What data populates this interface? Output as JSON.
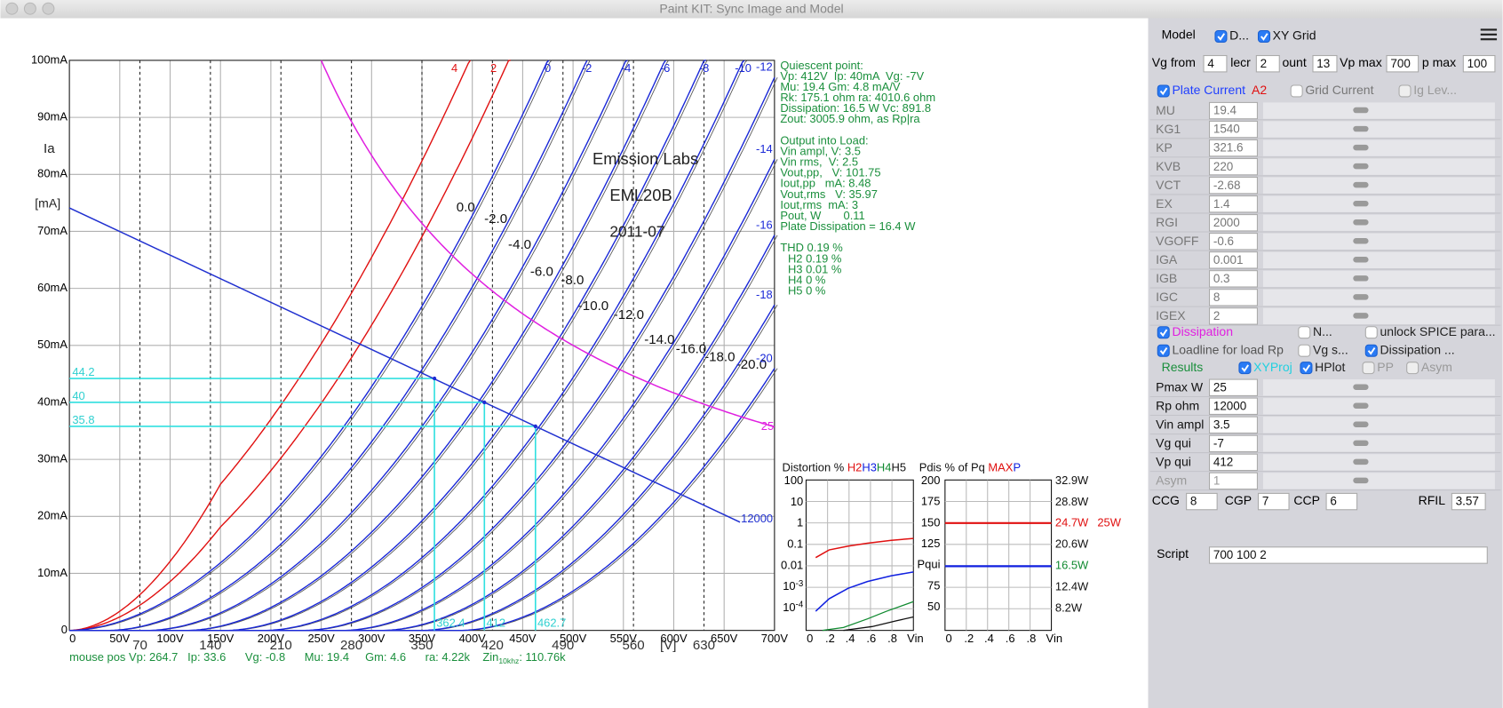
{
  "window": {
    "title": "Paint KIT: Sync Image and Model"
  },
  "plot": {
    "y_labels": [
      "100mA",
      "90mA",
      "80mA",
      "70mA",
      "60mA",
      "50mA",
      "40mA",
      "30mA",
      "20mA",
      "10mA",
      "0"
    ],
    "x_labels": [
      "0",
      "50V",
      "100V",
      "150V",
      "200V",
      "250V",
      "300V",
      "350V",
      "400V",
      "450V",
      "500V",
      "550V",
      "600V",
      "650V",
      "700V"
    ],
    "image_x_labels": [
      70,
      140,
      210,
      280,
      350,
      420,
      490,
      560,
      630
    ],
    "image_unit_label": "[V]",
    "image_axis_labels": [
      "Ia",
      "[mA]"
    ],
    "image_title": [
      "Emission Labs",
      "EML20B",
      "2011-07"
    ],
    "image_curve_labels": [
      "0.0",
      "-2.0",
      "-4.0",
      "-6.0",
      "-8.0",
      "-10.0",
      "-12.0",
      "-14.0",
      "-16.0",
      "-18.0",
      "-20.0"
    ],
    "grid_top_labels": [
      4,
      2,
      0,
      -2,
      -4,
      -6,
      -8,
      -10
    ],
    "grid_right_labels": [
      -12,
      -14,
      -16,
      -18,
      -20
    ],
    "dissipation_w": 25,
    "load_label": "12000",
    "projections": [
      {
        "ia": 44.2,
        "vp": 362.4
      },
      {
        "ia": 40,
        "vp": 412
      },
      {
        "ia": 35.8,
        "vp": 462.7
      }
    ]
  },
  "info": {
    "quiescent": [
      "Quiescent point:",
      "Vp: 412V  Ip: 40mA  Vg: -7V",
      "Mu: 19.4 Gm: 4.8 mA/V",
      "Rk: 175.1 ohm ra: 4010.6 ohm",
      "Dissipation: 16.5 W Vc: 891.8",
      "Zout: 3005.9 ohm, as Rp|ra"
    ],
    "output": [
      "Output into Load:",
      "Vin ampl, V: 3.5",
      "Vin rms,  V: 2.5",
      "Vout,pp,   V: 101.75",
      "Iout,pp   mA: 8.48",
      "Vout,rms   V: 35.97",
      "Iout,rms  mA: 3",
      "Pout, W       0.11",
      "Plate Dissipation = 16.4 W"
    ],
    "thd": [
      "THD 0.19 %",
      "H2 0.19 %",
      "H3 0.01 %",
      "H4 0 %",
      "H5 0 %"
    ]
  },
  "mouse": {
    "text": "mouse pos Vp: 264.7   Ip: 33.6      Vg: -0.8      Mu: 19.4     Gm: 4.6      ra: 4.22k    Zin",
    "sub": "10khz",
    "tail": ": 110.76k"
  },
  "distortion": {
    "title": "Distortion % ",
    "h": [
      "H2",
      "H3",
      "H4",
      "H5"
    ],
    "y_labels": [
      "100",
      "10",
      "1",
      "0.1",
      "0.01",
      {
        "base": "10",
        "exp": "-3"
      },
      {
        "base": "10",
        "exp": "-4"
      }
    ],
    "x_labels": [
      "0",
      ".2",
      ".4",
      ".6",
      ".8",
      "Vin"
    ]
  },
  "pdis": {
    "title": "Pdis % of Pq ",
    "max": "MAX",
    "p": "P",
    "left_labels": [
      "200",
      "175",
      "150",
      "Pqui",
      "75",
      "50"
    ],
    "left_top": "125",
    "right_labels": [
      "32.9W",
      "28.8W",
      "24.7W",
      "20.6W",
      "16.5W",
      "12.4W",
      "8.2W"
    ],
    "max_label": "25W",
    "x_labels": [
      "0",
      ".2",
      ".4",
      ".6",
      ".8",
      "Vin"
    ]
  },
  "panel": {
    "model_label": "Model",
    "top_checks": [
      {
        "label": "D...",
        "checked": true
      },
      {
        "label": "XY Grid",
        "checked": true
      }
    ],
    "vg_row": [
      {
        "label": "Vg from",
        "value": "4"
      },
      {
        "label": "lecr",
        "value": "2"
      },
      {
        "label": "ount",
        "value": "13"
      },
      {
        "label": "Vp max",
        "value": "700"
      },
      {
        "label": "p max",
        "value": "100"
      }
    ],
    "curve_checks": [
      {
        "label": "Plate Current",
        "checked": true,
        "color": "#1f3fff"
      },
      {
        "label": "Grid Current",
        "checked": false,
        "color": "#777777"
      },
      {
        "label": "Ig Lev...",
        "checked": false,
        "disabled": true,
        "color": "#999999"
      }
    ],
    "a2": "A2",
    "params": [
      {
        "name": "MU",
        "value": "19.4"
      },
      {
        "name": "KG1",
        "value": "1540"
      },
      {
        "name": "KP",
        "value": "321.6"
      },
      {
        "name": "KVB",
        "value": "220"
      },
      {
        "name": "VCT",
        "value": "-2.68"
      },
      {
        "name": "EX",
        "value": "1.4"
      },
      {
        "name": "RGI",
        "value": "2000"
      },
      {
        "name": "VGOFF",
        "value": "-0.6"
      },
      {
        "name": "IGA",
        "value": "0.001"
      },
      {
        "name": "IGB",
        "value": "0.3"
      },
      {
        "name": "IGC",
        "value": "8"
      },
      {
        "name": "IGEX",
        "value": "2"
      }
    ],
    "option_checks": [
      [
        {
          "label": "Dissipation",
          "checked": true,
          "color": "#e020e0"
        },
        {
          "label": "N...",
          "checked": false,
          "color": "#222222"
        },
        {
          "label": "unlock SPICE para...",
          "checked": false,
          "color": "#222222"
        }
      ],
      [
        {
          "label": "Loadline for load Rp",
          "checked": true,
          "color": "#555555"
        },
        {
          "label": "Vg s...",
          "checked": false,
          "color": "#222222"
        },
        {
          "label": "Dissipation ...",
          "checked": true,
          "color": "#222222"
        }
      ]
    ],
    "results_label": "Results",
    "result_checks": [
      {
        "label": "XYProj",
        "checked": true,
        "color": "#20d0e0"
      },
      {
        "label": "HPlot",
        "checked": true,
        "color": "#222222"
      },
      {
        "label": "PP",
        "checked": false,
        "disabled": true,
        "color": "#999999"
      },
      {
        "label": "Asym",
        "checked": false,
        "disabled": true,
        "color": "#999999"
      }
    ],
    "results": [
      {
        "name": "Pmax W",
        "value": "25"
      },
      {
        "name": "Rp ohm",
        "value": "12000"
      },
      {
        "name": "Vin ampl",
        "value": "3.5"
      },
      {
        "name": "Vg qui",
        "value": "-7"
      },
      {
        "name": "Vp qui",
        "value": "412"
      },
      {
        "name": "Asym",
        "value": "1",
        "disabled": true
      }
    ],
    "caps": [
      {
        "label": "CCG",
        "value": "8"
      },
      {
        "label": "CGP",
        "value": "7"
      },
      {
        "label": "CCP",
        "value": "6"
      },
      {
        "label": "RFIL",
        "value": "3.57"
      }
    ],
    "script": {
      "label": "Script",
      "value": "700 100 2"
    }
  }
}
